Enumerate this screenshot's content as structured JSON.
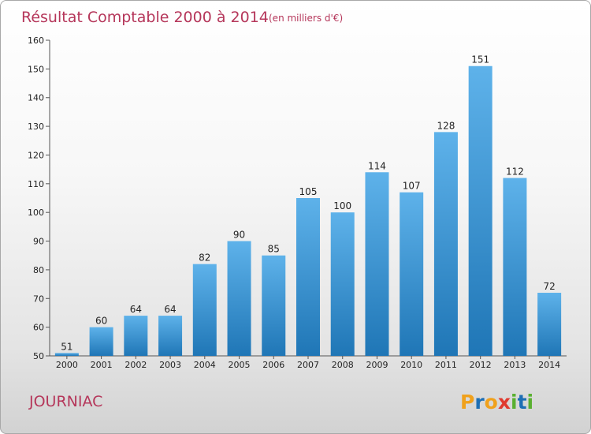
{
  "header": {
    "title": "Résultat Comptable 2000 à 2014",
    "subtitle": "(en milliers d'€)"
  },
  "footer": {
    "commune": "JOURNIAC",
    "brand": {
      "text": "Proxiti",
      "letters": [
        "P",
        "r",
        "o",
        "x",
        "i",
        "t",
        "i"
      ],
      "colors": [
        "#f0a11c",
        "#1e6fb5",
        "#f0a11c",
        "#e03a2f",
        "#5ab031",
        "#1e6fb5",
        "#5ab031"
      ]
    }
  },
  "colors": {
    "bar_top": "#5eb2ea",
    "bar_bottom": "#1f76b6",
    "accent": "#b5365a"
  },
  "chart_data": {
    "type": "bar",
    "title": "Résultat Comptable 2000 à 2014",
    "subtitle": "(en milliers d'€)",
    "categories": [
      "2000",
      "2001",
      "2002",
      "2003",
      "2004",
      "2005",
      "2006",
      "2007",
      "2008",
      "2009",
      "2010",
      "2011",
      "2012",
      "2013",
      "2014"
    ],
    "values": [
      51,
      60,
      64,
      64,
      82,
      90,
      85,
      105,
      100,
      114,
      107,
      128,
      151,
      112,
      72
    ],
    "ylim": [
      50,
      160
    ],
    "yticks": [
      50,
      60,
      70,
      80,
      90,
      100,
      110,
      120,
      130,
      140,
      150,
      160
    ],
    "grid": false,
    "legend": "none"
  }
}
